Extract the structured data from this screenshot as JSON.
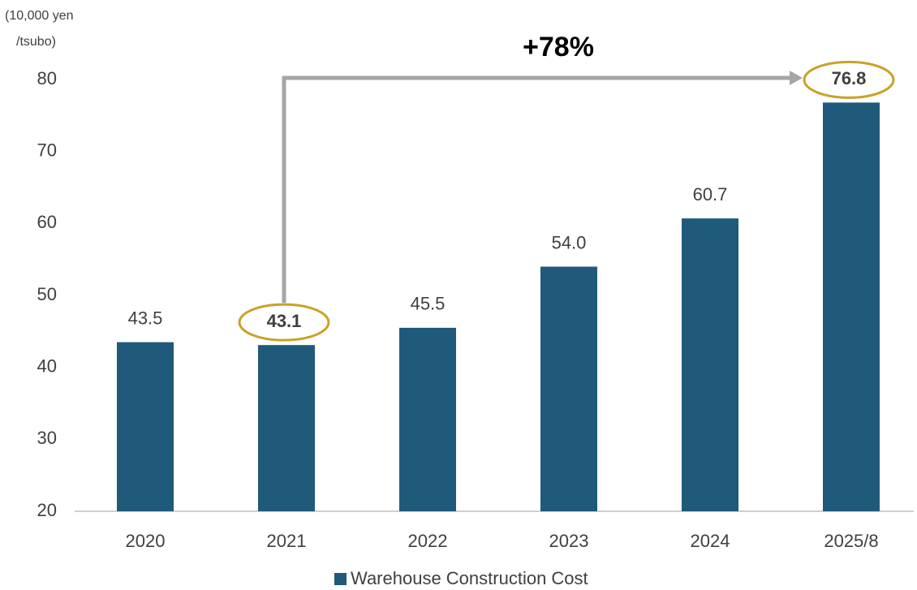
{
  "chart_data": {
    "type": "bar",
    "y_label": [
      "(10,000 yen",
      "/tsubo)"
    ],
    "categories": [
      "2020",
      "2021",
      "2022",
      "2023",
      "2024",
      "2025/8"
    ],
    "series": [
      {
        "name": "Warehouse Construction Cost",
        "color": "#1f5a7a",
        "values": [
          43.5,
          43.1,
          45.5,
          54.0,
          60.7,
          76.8
        ]
      }
    ],
    "value_labels": [
      "43.5",
      "43.1",
      "45.5",
      "54.0",
      "60.7",
      "76.8"
    ],
    "ylim": [
      20,
      80
    ],
    "yticks": [
      20,
      30,
      40,
      50,
      60,
      70,
      80
    ],
    "grid": false,
    "legend": "bottom",
    "annotation": {
      "text": "+78%",
      "from": "2021",
      "to": "2025/8"
    }
  }
}
